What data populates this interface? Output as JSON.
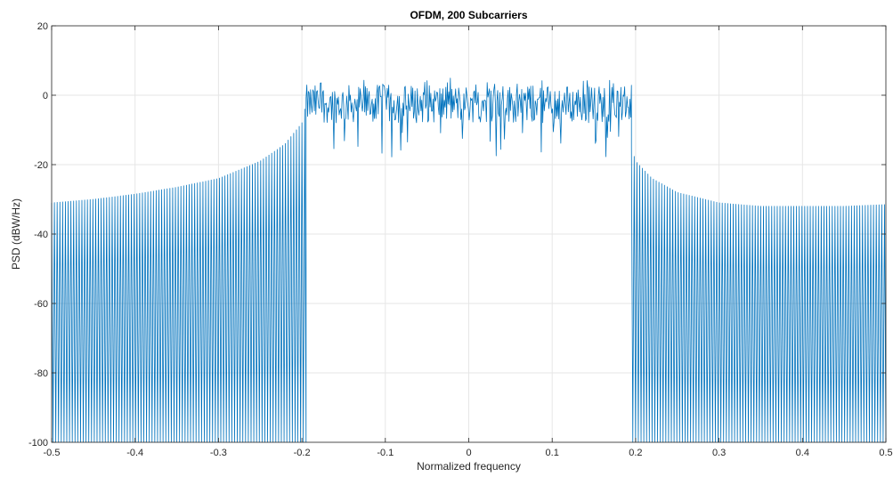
{
  "chart_data": {
    "type": "line",
    "title": "OFDM, 200 Subcarriers",
    "xlabel": "Normalized frequency",
    "ylabel": "PSD (dBW/Hz)",
    "xlim": [
      -0.5,
      0.5
    ],
    "ylim": [
      -100,
      20
    ],
    "xticks": [
      -0.5,
      -0.4,
      -0.3,
      -0.2,
      -0.1,
      0,
      0.1,
      0.2,
      0.3,
      0.4,
      0.5
    ],
    "xtick_labels": [
      "-0.5",
      "-0.4",
      "-0.3",
      "-0.2",
      "-0.1",
      "0",
      "0.1",
      "0.2",
      "0.3",
      "0.4",
      "0.5"
    ],
    "yticks": [
      -100,
      -80,
      -60,
      -40,
      -20,
      0,
      20
    ],
    "ytick_labels": [
      "-100",
      "-80",
      "-60",
      "-40",
      "-20",
      "0",
      "20"
    ],
    "grid": true,
    "series": [
      {
        "color": "#0072BD",
        "segments": [
          {
            "region": "lower sidelobe",
            "x_range": [
              -0.5,
              -0.195
            ],
            "upper_envelope": {
              "x": [
                -0.5,
                -0.45,
                -0.4,
                -0.35,
                -0.3,
                -0.25,
                -0.22,
                -0.2,
                -0.195
              ],
              "y": [
                -31,
                -30,
                -28.5,
                -26.5,
                -24,
                -19,
                -14,
                -8,
                -2
              ]
            },
            "nulls_to": -100
          },
          {
            "region": "passband",
            "x_range": [
              -0.195,
              0.195
            ],
            "typical_y_range": [
              -8,
              3
            ],
            "min_y": -18,
            "max_y": 5
          },
          {
            "region": "upper sidelobe",
            "x_range": [
              0.195,
              0.5
            ],
            "upper_envelope": {
              "x": [
                0.195,
                0.2,
                0.22,
                0.25,
                0.3,
                0.35,
                0.4,
                0.45,
                0.5
              ],
              "y": [
                -15,
                -19,
                -24,
                -28,
                -31,
                -32,
                -32,
                -32,
                -31.5
              ]
            },
            "nulls_to": -100
          }
        ]
      }
    ]
  },
  "colors": {
    "line": "#0072BD",
    "grid": "#e6e6e6",
    "axes": "#262626",
    "background": "#ffffff"
  }
}
